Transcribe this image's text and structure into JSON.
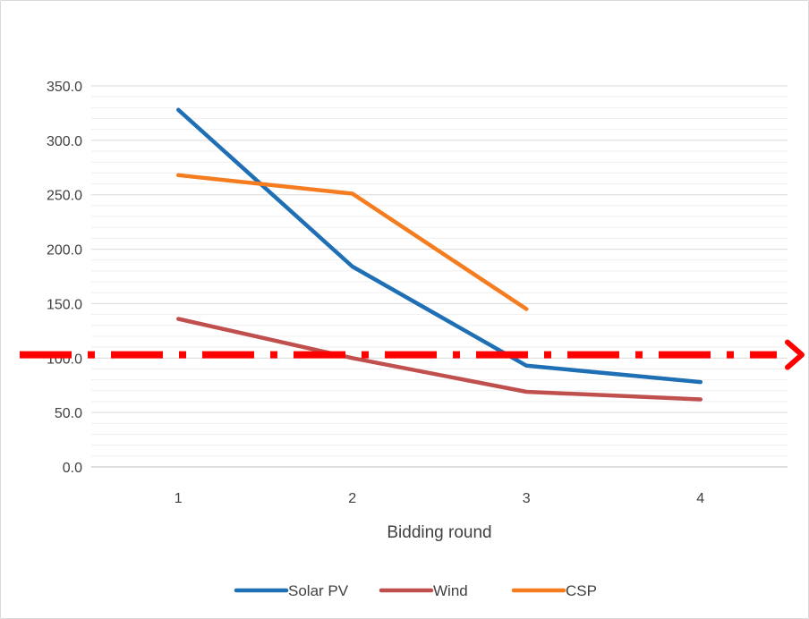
{
  "chart_data": {
    "type": "line",
    "title": "",
    "xlabel": "Bidding round",
    "ylabel": "",
    "categories": [
      "1",
      "2",
      "3",
      "4"
    ],
    "ylim": [
      0,
      350
    ],
    "yticks": [
      "0.0",
      "50.0",
      "100.0",
      "150.0",
      "200.0",
      "250.0",
      "300.0",
      "350.0"
    ],
    "minor_gridlines": true,
    "legend_position": "bottom",
    "series": [
      {
        "name": "Solar PV",
        "color": "#1f6fb5",
        "values": [
          328,
          184,
          93,
          78
        ]
      },
      {
        "name": "Wind",
        "color": "#c0504d",
        "values": [
          136,
          100,
          69,
          62
        ]
      },
      {
        "name": "CSP",
        "color": "#f57c1f",
        "values": [
          268,
          251,
          145,
          null
        ]
      }
    ],
    "annotations": [
      {
        "type": "dash-dot reference line",
        "value": 103,
        "color": "#ff0000",
        "arrow": "right"
      }
    ]
  }
}
